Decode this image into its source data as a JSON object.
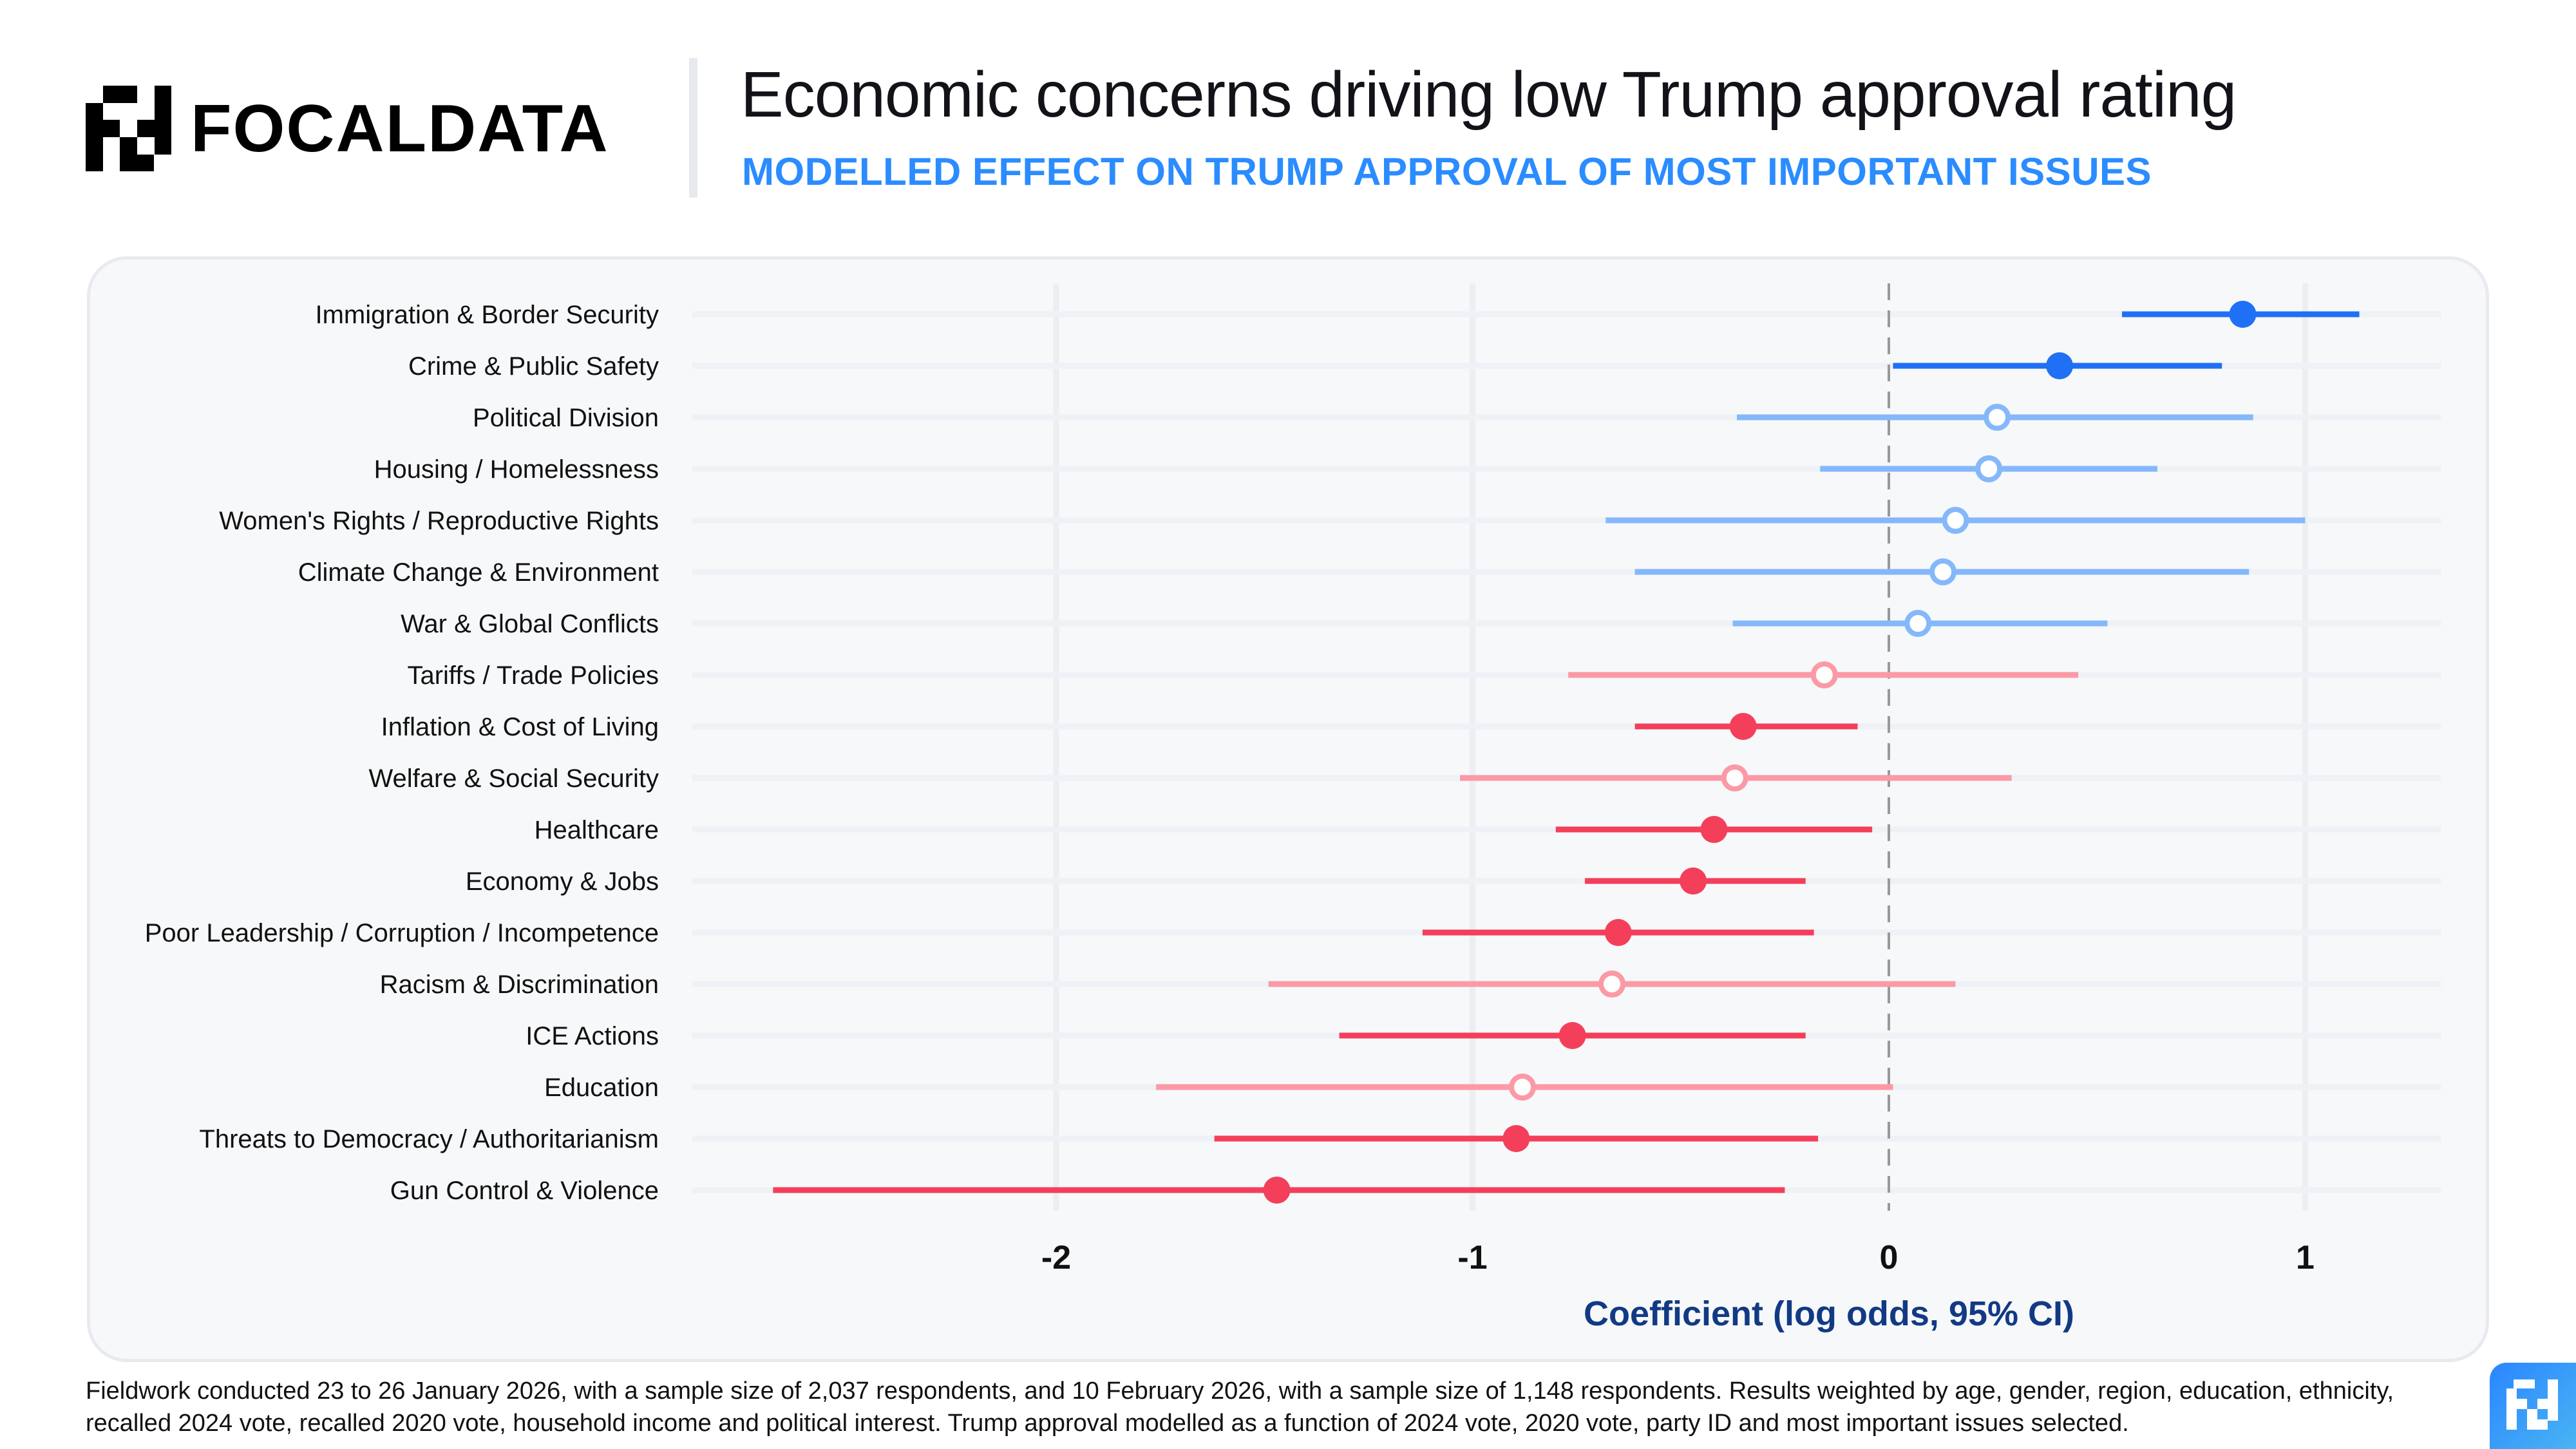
{
  "brand": {
    "name": "FOCALDATA",
    "logo_icon": "focaldata-logo-icon"
  },
  "header": {
    "title": "Economic concerns driving low Trump approval rating",
    "subtitle": "MODELLED EFFECT ON TRUMP APPROVAL OF MOST IMPORTANT ISSUES"
  },
  "colors": {
    "positive_significant": "#2070f5",
    "positive_nonsignificant": "#85b8fb",
    "negative_significant": "#f43f5a",
    "negative_nonsignificant": "#fb9aa6",
    "subtitle": "#2b8cff",
    "axis_title": "#123a84",
    "zero_line": "#999999",
    "gridline": "#eceef2",
    "row_band": "#eef1f5"
  },
  "chart_data": {
    "type": "forest",
    "title": "Economic concerns driving low Trump approval rating",
    "subtitle": "MODELLED EFFECT ON TRUMP APPROVAL OF MOST IMPORTANT ISSUES",
    "xlabel": "Coefficient (log odds, 95% CI)",
    "ylabel": "",
    "xlim": [
      -2.9,
      1.33
    ],
    "xticks": [
      -2,
      -1,
      0,
      1
    ],
    "xtick_labels": [
      "-2",
      "-1",
      "0",
      "1"
    ],
    "reference_line": 0,
    "grid": true,
    "legend": "none",
    "encoding": "filled marker = significant (CI excludes 0); hollow = not significant; blue = positive estimate, red = negative estimate",
    "categories": [
      "Immigration & Border Security",
      "Crime & Public Safety",
      "Political Division",
      "Housing / Homelessness",
      "Women's Rights / Reproductive Rights",
      "Climate Change & Environment",
      "War & Global Conflicts",
      "Tariffs / Trade Policies",
      "Inflation & Cost of Living",
      "Welfare & Social Security",
      "Healthcare",
      "Economy & Jobs",
      "Poor Leadership / Corruption / Incompetence",
      "Racism & Discrimination",
      "ICE Actions",
      "Education",
      "Threats to Democracy / Authoritarianism",
      "Gun Control & Violence"
    ],
    "series": [
      {
        "name": "Coefficient",
        "values": [
          0.85,
          0.41,
          0.26,
          0.24,
          0.16,
          0.13,
          0.07,
          -0.155,
          -0.35,
          -0.37,
          -0.42,
          -0.47,
          -0.65,
          -0.665,
          -0.76,
          -0.88,
          -0.895,
          -1.47
        ]
      },
      {
        "name": "CI low",
        "values": [
          0.56,
          0.01,
          -0.365,
          -0.165,
          -0.68,
          -0.61,
          -0.375,
          -0.77,
          -0.61,
          -1.03,
          -0.8,
          -0.73,
          -1.12,
          -1.49,
          -1.32,
          -1.76,
          -1.62,
          -2.68
        ]
      },
      {
        "name": "CI high",
        "values": [
          1.13,
          0.8,
          0.875,
          0.645,
          1.0,
          0.865,
          0.525,
          0.455,
          -0.075,
          0.295,
          -0.04,
          -0.2,
          -0.18,
          0.16,
          -0.2,
          0.01,
          -0.17,
          -0.25
        ]
      }
    ],
    "significant": [
      true,
      true,
      false,
      false,
      false,
      false,
      false,
      false,
      true,
      false,
      true,
      true,
      true,
      false,
      true,
      false,
      true,
      true
    ]
  },
  "footnote": "Fieldwork conducted 23 to 26 January 2026, with a sample size of 2,037 respondents, and 10 February 2026, with a sample size of 1,148 respondents. Results weighted by age, gender, region, education, ethnicity, recalled 2024 vote, recalled 2020 vote, household income and political interest. Trump approval modelled as a function of 2024 vote, 2020 vote, party ID and most important issues selected.",
  "badge": {
    "icon": "focaldata-badge-icon"
  }
}
